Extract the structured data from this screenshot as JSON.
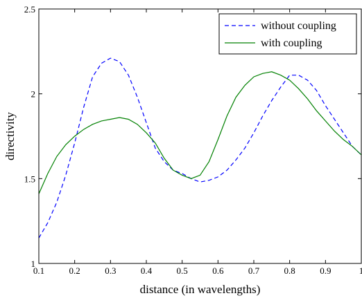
{
  "chart_data": {
    "type": "line",
    "title": "",
    "xlabel": "distance (in wavelengths)",
    "ylabel": "directivity",
    "xlim": [
      0.1,
      1.0
    ],
    "ylim": [
      1.0,
      2.5
    ],
    "x_ticks": [
      0.1,
      0.2,
      0.3,
      0.4,
      0.5,
      0.6,
      0.7,
      0.8,
      0.9,
      1.0
    ],
    "x_tick_labels": [
      "0.1",
      "0.2",
      "0.3",
      "0.4",
      "0.5",
      "0.6",
      "0.7",
      "0.8",
      "0.9",
      "1"
    ],
    "y_ticks": [
      1.0,
      1.5,
      2.0,
      2.5
    ],
    "y_tick_labels": [
      "1",
      "1.5",
      "2",
      "2.5"
    ],
    "grid": false,
    "legend_position": "top-right",
    "series": [
      {
        "name": "without coupling",
        "color": "#0000ff",
        "style": "dashed",
        "x": [
          0.1,
          0.125,
          0.15,
          0.175,
          0.2,
          0.225,
          0.25,
          0.275,
          0.3,
          0.325,
          0.35,
          0.375,
          0.4,
          0.425,
          0.45,
          0.475,
          0.5,
          0.525,
          0.55,
          0.575,
          0.6,
          0.625,
          0.65,
          0.675,
          0.7,
          0.725,
          0.75,
          0.775,
          0.8,
          0.825,
          0.85,
          0.875,
          0.9,
          0.925,
          0.95,
          0.975,
          1.0
        ],
        "y": [
          1.15,
          1.24,
          1.36,
          1.52,
          1.71,
          1.92,
          2.1,
          2.18,
          2.21,
          2.19,
          2.11,
          1.98,
          1.83,
          1.68,
          1.6,
          1.55,
          1.53,
          1.5,
          1.48,
          1.49,
          1.51,
          1.55,
          1.61,
          1.68,
          1.77,
          1.87,
          1.96,
          2.04,
          2.11,
          2.11,
          2.08,
          2.02,
          1.93,
          1.85,
          1.77,
          1.69,
          1.64
        ]
      },
      {
        "name": "with coupling",
        "color": "#008000",
        "style": "solid",
        "x": [
          0.1,
          0.125,
          0.15,
          0.175,
          0.2,
          0.225,
          0.25,
          0.275,
          0.3,
          0.325,
          0.35,
          0.375,
          0.4,
          0.425,
          0.45,
          0.475,
          0.5,
          0.525,
          0.55,
          0.575,
          0.6,
          0.625,
          0.65,
          0.675,
          0.7,
          0.725,
          0.75,
          0.775,
          0.8,
          0.825,
          0.85,
          0.875,
          0.9,
          0.925,
          0.95,
          0.975,
          1.0
        ],
        "y": [
          1.41,
          1.53,
          1.63,
          1.7,
          1.75,
          1.79,
          1.82,
          1.84,
          1.85,
          1.86,
          1.85,
          1.82,
          1.77,
          1.71,
          1.62,
          1.55,
          1.52,
          1.5,
          1.52,
          1.6,
          1.73,
          1.87,
          1.98,
          2.05,
          2.1,
          2.12,
          2.13,
          2.11,
          2.08,
          2.03,
          1.97,
          1.9,
          1.84,
          1.78,
          1.73,
          1.69,
          1.64
        ]
      }
    ]
  }
}
